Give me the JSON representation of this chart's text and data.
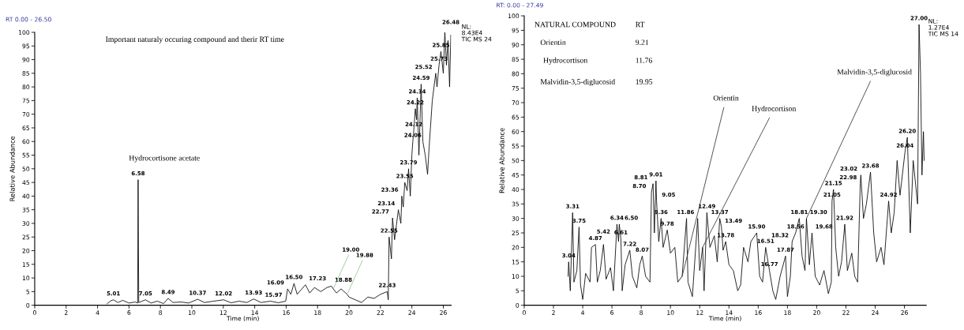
{
  "chart_data": [
    {
      "type": "line",
      "title": "Important naturaly occuring compound and therir RT time",
      "xlabel": "Time (min)",
      "ylabel": "Relative Abundance",
      "xlim": [
        0,
        26.5
      ],
      "xticks": [
        0,
        2,
        4,
        6,
        8,
        10,
        12,
        14,
        16,
        18,
        20,
        22,
        24,
        26
      ],
      "ylim": [
        0,
        100
      ],
      "yticks": [
        0,
        5,
        10,
        15,
        20,
        25,
        30,
        35,
        40,
        45,
        50,
        55,
        60,
        65,
        70,
        75,
        80,
        85,
        90,
        95,
        100
      ],
      "series": [
        {
          "color": "#000000",
          "x": [
            4.6,
            4.8,
            5.01,
            5.3,
            5.6,
            6.0,
            6.4,
            6.55,
            6.58,
            6.62,
            7.05,
            7.4,
            7.8,
            8.2,
            8.49,
            8.8,
            9.3,
            9.8,
            10.37,
            10.8,
            11.4,
            12.02,
            12.5,
            13.0,
            13.5,
            13.93,
            14.4,
            15.0,
            15.5,
            15.97,
            16.09,
            16.3,
            16.5,
            16.7,
            17.0,
            17.23,
            17.5,
            17.8,
            18.2,
            18.6,
            18.88,
            19.0,
            19.2,
            19.5,
            19.88,
            20.0,
            20.4,
            20.8,
            21.2,
            21.6,
            22.0,
            22.43,
            22.5,
            22.55,
            22.7,
            22.77,
            22.9,
            23.14,
            23.3,
            23.36,
            23.45,
            23.55,
            23.7,
            23.79,
            23.9,
            24.0,
            24.06,
            24.12,
            24.22,
            24.3,
            24.34,
            24.45,
            24.59,
            24.7,
            24.85,
            25.0,
            25.1,
            25.3,
            25.52,
            25.6,
            25.73,
            25.85,
            26.0,
            26.1,
            26.2,
            26.3,
            26.4,
            26.48
          ],
          "values": [
            0.5,
            1.5,
            2,
            1,
            1.8,
            0.8,
            1.2,
            0.8,
            46,
            1,
            2,
            0.8,
            1.5,
            0.6,
            2.5,
            1,
            1.2,
            0.8,
            2.2,
            1,
            1.5,
            2,
            0.9,
            1.5,
            1,
            2.3,
            1,
            1.5,
            0.9,
            1.5,
            6,
            4,
            8,
            4,
            6,
            7.5,
            4.5,
            6.5,
            5,
            6.5,
            7,
            6,
            4.5,
            6,
            4,
            3,
            2,
            1,
            3,
            2.5,
            4,
            5,
            2,
            25,
            17,
            32,
            24,
            35,
            30,
            40,
            36,
            45,
            42,
            50,
            40,
            55,
            60,
            64,
            72,
            68,
            76,
            55,
            81,
            60,
            55,
            48,
            58,
            75,
            85,
            80,
            88,
            93,
            85,
            100,
            88,
            97,
            80,
            99
          ]
        }
      ],
      "annotations": [
        "RT 0.00 - 26.50",
        "NL:\n8.43E4\nTIC MS 24",
        {
          "text": "Hydrocortisone acetate",
          "x": 6.58,
          "y": 46
        },
        {
          "text": "5.01",
          "x": 5.01,
          "y": 2
        },
        {
          "text": "6.58",
          "x": 6.58,
          "y": 46
        },
        {
          "text": "7.05",
          "x": 7.05,
          "y": 2
        },
        {
          "text": "8.49",
          "x": 8.49,
          "y": 2.5
        },
        {
          "text": "10.37",
          "x": 10.37,
          "y": 2.2
        },
        {
          "text": "12.02",
          "x": 12.02,
          "y": 2
        },
        {
          "text": "13.93",
          "x": 13.93,
          "y": 2.3
        },
        {
          "text": "15.97",
          "x": 15.97,
          "y": 1.5
        },
        {
          "text": "16.09",
          "x": 16.09,
          "y": 6
        },
        {
          "text": "16.50",
          "x": 16.5,
          "y": 8
        },
        {
          "text": "17.23",
          "x": 17.23,
          "y": 7.5
        },
        {
          "text": "18.88",
          "x": 18.88,
          "y": 7
        },
        {
          "text": "19.00",
          "x": 19.0,
          "y": 6
        },
        {
          "text": "19.88",
          "x": 19.88,
          "y": 4
        },
        {
          "text": "22.43",
          "x": 22.43,
          "y": 5
        },
        {
          "text": "22.55",
          "x": 22.55,
          "y": 25
        },
        {
          "text": "22.77",
          "x": 22.77,
          "y": 32
        },
        {
          "text": "23.14",
          "x": 23.14,
          "y": 35
        },
        {
          "text": "23.36",
          "x": 23.36,
          "y": 40
        },
        {
          "text": "23.55",
          "x": 23.55,
          "y": 45
        },
        {
          "text": "23.79",
          "x": 23.79,
          "y": 50
        },
        {
          "text": "24.06",
          "x": 24.06,
          "y": 60
        },
        {
          "text": "24.12",
          "x": 24.12,
          "y": 64
        },
        {
          "text": "24.22",
          "x": 24.22,
          "y": 72
        },
        {
          "text": "24.34",
          "x": 24.34,
          "y": 76
        },
        {
          "text": "24.59",
          "x": 24.59,
          "y": 81
        },
        {
          "text": "25.52",
          "x": 25.52,
          "y": 85
        },
        {
          "text": "25.73",
          "x": 25.73,
          "y": 88
        },
        {
          "text": "25.85",
          "x": 25.85,
          "y": 93
        },
        {
          "text": "26.48",
          "x": 26.48,
          "y": 99
        }
      ]
    },
    {
      "type": "line",
      "xlabel": "Time (min)",
      "ylabel": "Relative Abundance",
      "xlim": [
        0,
        27.49
      ],
      "xticks": [
        0,
        2,
        4,
        6,
        8,
        10,
        12,
        14,
        16,
        18,
        20,
        22,
        24,
        26
      ],
      "ylim": [
        0,
        100
      ],
      "yticks": [
        0,
        5,
        10,
        15,
        20,
        25,
        30,
        35,
        40,
        45,
        50,
        55,
        60,
        65,
        70,
        75,
        80,
        85,
        90,
        95,
        100
      ],
      "series": [
        {
          "color": "#000000",
          "x": [
            3.0,
            3.04,
            3.15,
            3.31,
            3.4,
            3.6,
            3.75,
            3.85,
            4.0,
            4.2,
            4.5,
            4.6,
            4.87,
            5.0,
            5.2,
            5.42,
            5.6,
            5.9,
            6.1,
            6.34,
            6.45,
            6.5,
            6.61,
            6.7,
            6.9,
            7.22,
            7.4,
            7.7,
            7.9,
            8.07,
            8.3,
            8.6,
            8.7,
            8.81,
            8.9,
            9.01,
            9.05,
            9.2,
            9.36,
            9.5,
            9.78,
            10.0,
            10.3,
            10.5,
            10.8,
            11.1,
            11.2,
            11.5,
            11.86,
            12.0,
            12.2,
            12.3,
            12.49,
            12.7,
            13.0,
            13.2,
            13.37,
            13.49,
            13.6,
            13.78,
            14.0,
            14.3,
            14.6,
            14.8,
            15.0,
            15.3,
            15.5,
            15.9,
            16.1,
            16.3,
            16.51,
            16.77,
            17.0,
            17.2,
            17.5,
            17.87,
            18.0,
            18.2,
            18.32,
            18.56,
            18.81,
            19.0,
            19.2,
            19.3,
            19.5,
            19.68,
            19.9,
            20.2,
            20.5,
            20.8,
            21.0,
            21.05,
            21.15,
            21.3,
            21.5,
            21.7,
            21.92,
            22.1,
            22.4,
            22.6,
            22.8,
            22.98,
            23.02,
            23.2,
            23.4,
            23.68,
            23.9,
            24.1,
            24.4,
            24.6,
            24.92,
            25.1,
            25.3,
            25.5,
            25.7,
            26.04,
            26.2,
            26.4,
            26.6,
            26.8,
            26.9,
            27.0,
            27.1,
            27.2,
            27.3,
            27.35
          ],
          "values": [
            10,
            15,
            5,
            32,
            8,
            12,
            27,
            7,
            2,
            11,
            8,
            20,
            21,
            8,
            12,
            21,
            9,
            13,
            5,
            28,
            22,
            28,
            23,
            5,
            14,
            19,
            10,
            6,
            14,
            17,
            10,
            8,
            39,
            42,
            25,
            43,
            36,
            22,
            30,
            20,
            26,
            18,
            20,
            8,
            10,
            30,
            8,
            3,
            30,
            12,
            20,
            5,
            32,
            20,
            24,
            15,
            30,
            27,
            19,
            22,
            14,
            12,
            5,
            7,
            20,
            15,
            22,
            25,
            10,
            8,
            20,
            12,
            5,
            2,
            10,
            17,
            3,
            10,
            22,
            25,
            30,
            17,
            12,
            30,
            14,
            25,
            10,
            7,
            12,
            4,
            8,
            36,
            40,
            20,
            10,
            15,
            28,
            12,
            18,
            10,
            8,
            42,
            45,
            30,
            35,
            46,
            25,
            15,
            20,
            14,
            36,
            25,
            32,
            50,
            38,
            53,
            58,
            25,
            50,
            40,
            35,
            97,
            80,
            45,
            60,
            50
          ]
        }
      ],
      "annotations": [
        "RT: 0.00 - 27.49",
        "NL:\n1.27E4\nTIC MS 14",
        "NATURAL COMPOUND",
        "RT",
        "Orientin",
        "9.21",
        "Hydrocortison",
        "11.76",
        "Malvidin-3,5-diglucosid",
        "19.95",
        {
          "text": "Orientin",
          "x": 10.8,
          "y": 10
        },
        {
          "text": "Hydrocortison",
          "x": 12.2,
          "y": 20
        },
        {
          "text": "Malvidin-3,5-diglucosid",
          "x": 19.3,
          "y": 30
        },
        {
          "text": "3.04",
          "x": 3.04,
          "y": 15
        },
        {
          "text": "3.31",
          "x": 3.31,
          "y": 32
        },
        {
          "text": "3.75",
          "x": 3.75,
          "y": 27
        },
        {
          "text": "4.87",
          "x": 4.87,
          "y": 21
        },
        {
          "text": "5.42",
          "x": 5.42,
          "y": 21
        },
        {
          "text": "6.34",
          "x": 6.34,
          "y": 28
        },
        {
          "text": "6.50",
          "x": 6.5,
          "y": 28
        },
        {
          "text": "6.61",
          "x": 6.61,
          "y": 23
        },
        {
          "text": "7.22",
          "x": 7.22,
          "y": 19
        },
        {
          "text": "8.07",
          "x": 8.07,
          "y": 17
        },
        {
          "text": "8.70",
          "x": 8.7,
          "y": 39
        },
        {
          "text": "8.81",
          "x": 8.81,
          "y": 42
        },
        {
          "text": "9.01",
          "x": 9.01,
          "y": 43
        },
        {
          "text": "9.05",
          "x": 9.05,
          "y": 36
        },
        {
          "text": "9.36",
          "x": 9.36,
          "y": 30
        },
        {
          "text": "9.78",
          "x": 9.78,
          "y": 26
        },
        {
          "text": "11.86",
          "x": 11.86,
          "y": 30
        },
        {
          "text": "12.49",
          "x": 12.49,
          "y": 32
        },
        {
          "text": "13.37",
          "x": 13.37,
          "y": 30
        },
        {
          "text": "13.49",
          "x": 13.49,
          "y": 27
        },
        {
          "text": "13.78",
          "x": 13.78,
          "y": 22
        },
        {
          "text": "15.90",
          "x": 15.9,
          "y": 25
        },
        {
          "text": "16.51",
          "x": 16.51,
          "y": 20
        },
        {
          "text": "16.77",
          "x": 16.77,
          "y": 12
        },
        {
          "text": "17.87",
          "x": 17.87,
          "y": 17
        },
        {
          "text": "18.32",
          "x": 18.32,
          "y": 22
        },
        {
          "text": "18.56",
          "x": 18.56,
          "y": 25
        },
        {
          "text": "18.81",
          "x": 18.81,
          "y": 30
        },
        {
          "text": "19.30",
          "x": 19.3,
          "y": 30
        },
        {
          "text": "19.68",
          "x": 19.68,
          "y": 25
        },
        {
          "text": "21.05",
          "x": 21.05,
          "y": 36
        },
        {
          "text": "21.15",
          "x": 21.15,
          "y": 40
        },
        {
          "text": "21.92",
          "x": 21.92,
          "y": 28
        },
        {
          "text": "22.98",
          "x": 22.98,
          "y": 42
        },
        {
          "text": "23.02",
          "x": 23.02,
          "y": 45
        },
        {
          "text": "23.68",
          "x": 23.68,
          "y": 46
        },
        {
          "text": "24.92",
          "x": 24.92,
          "y": 36
        },
        {
          "text": "26.04",
          "x": 26.04,
          "y": 53
        },
        {
          "text": "26.20",
          "x": 26.2,
          "y": 58
        },
        {
          "text": "27.00",
          "x": 27.0,
          "y": 97
        }
      ]
    }
  ]
}
